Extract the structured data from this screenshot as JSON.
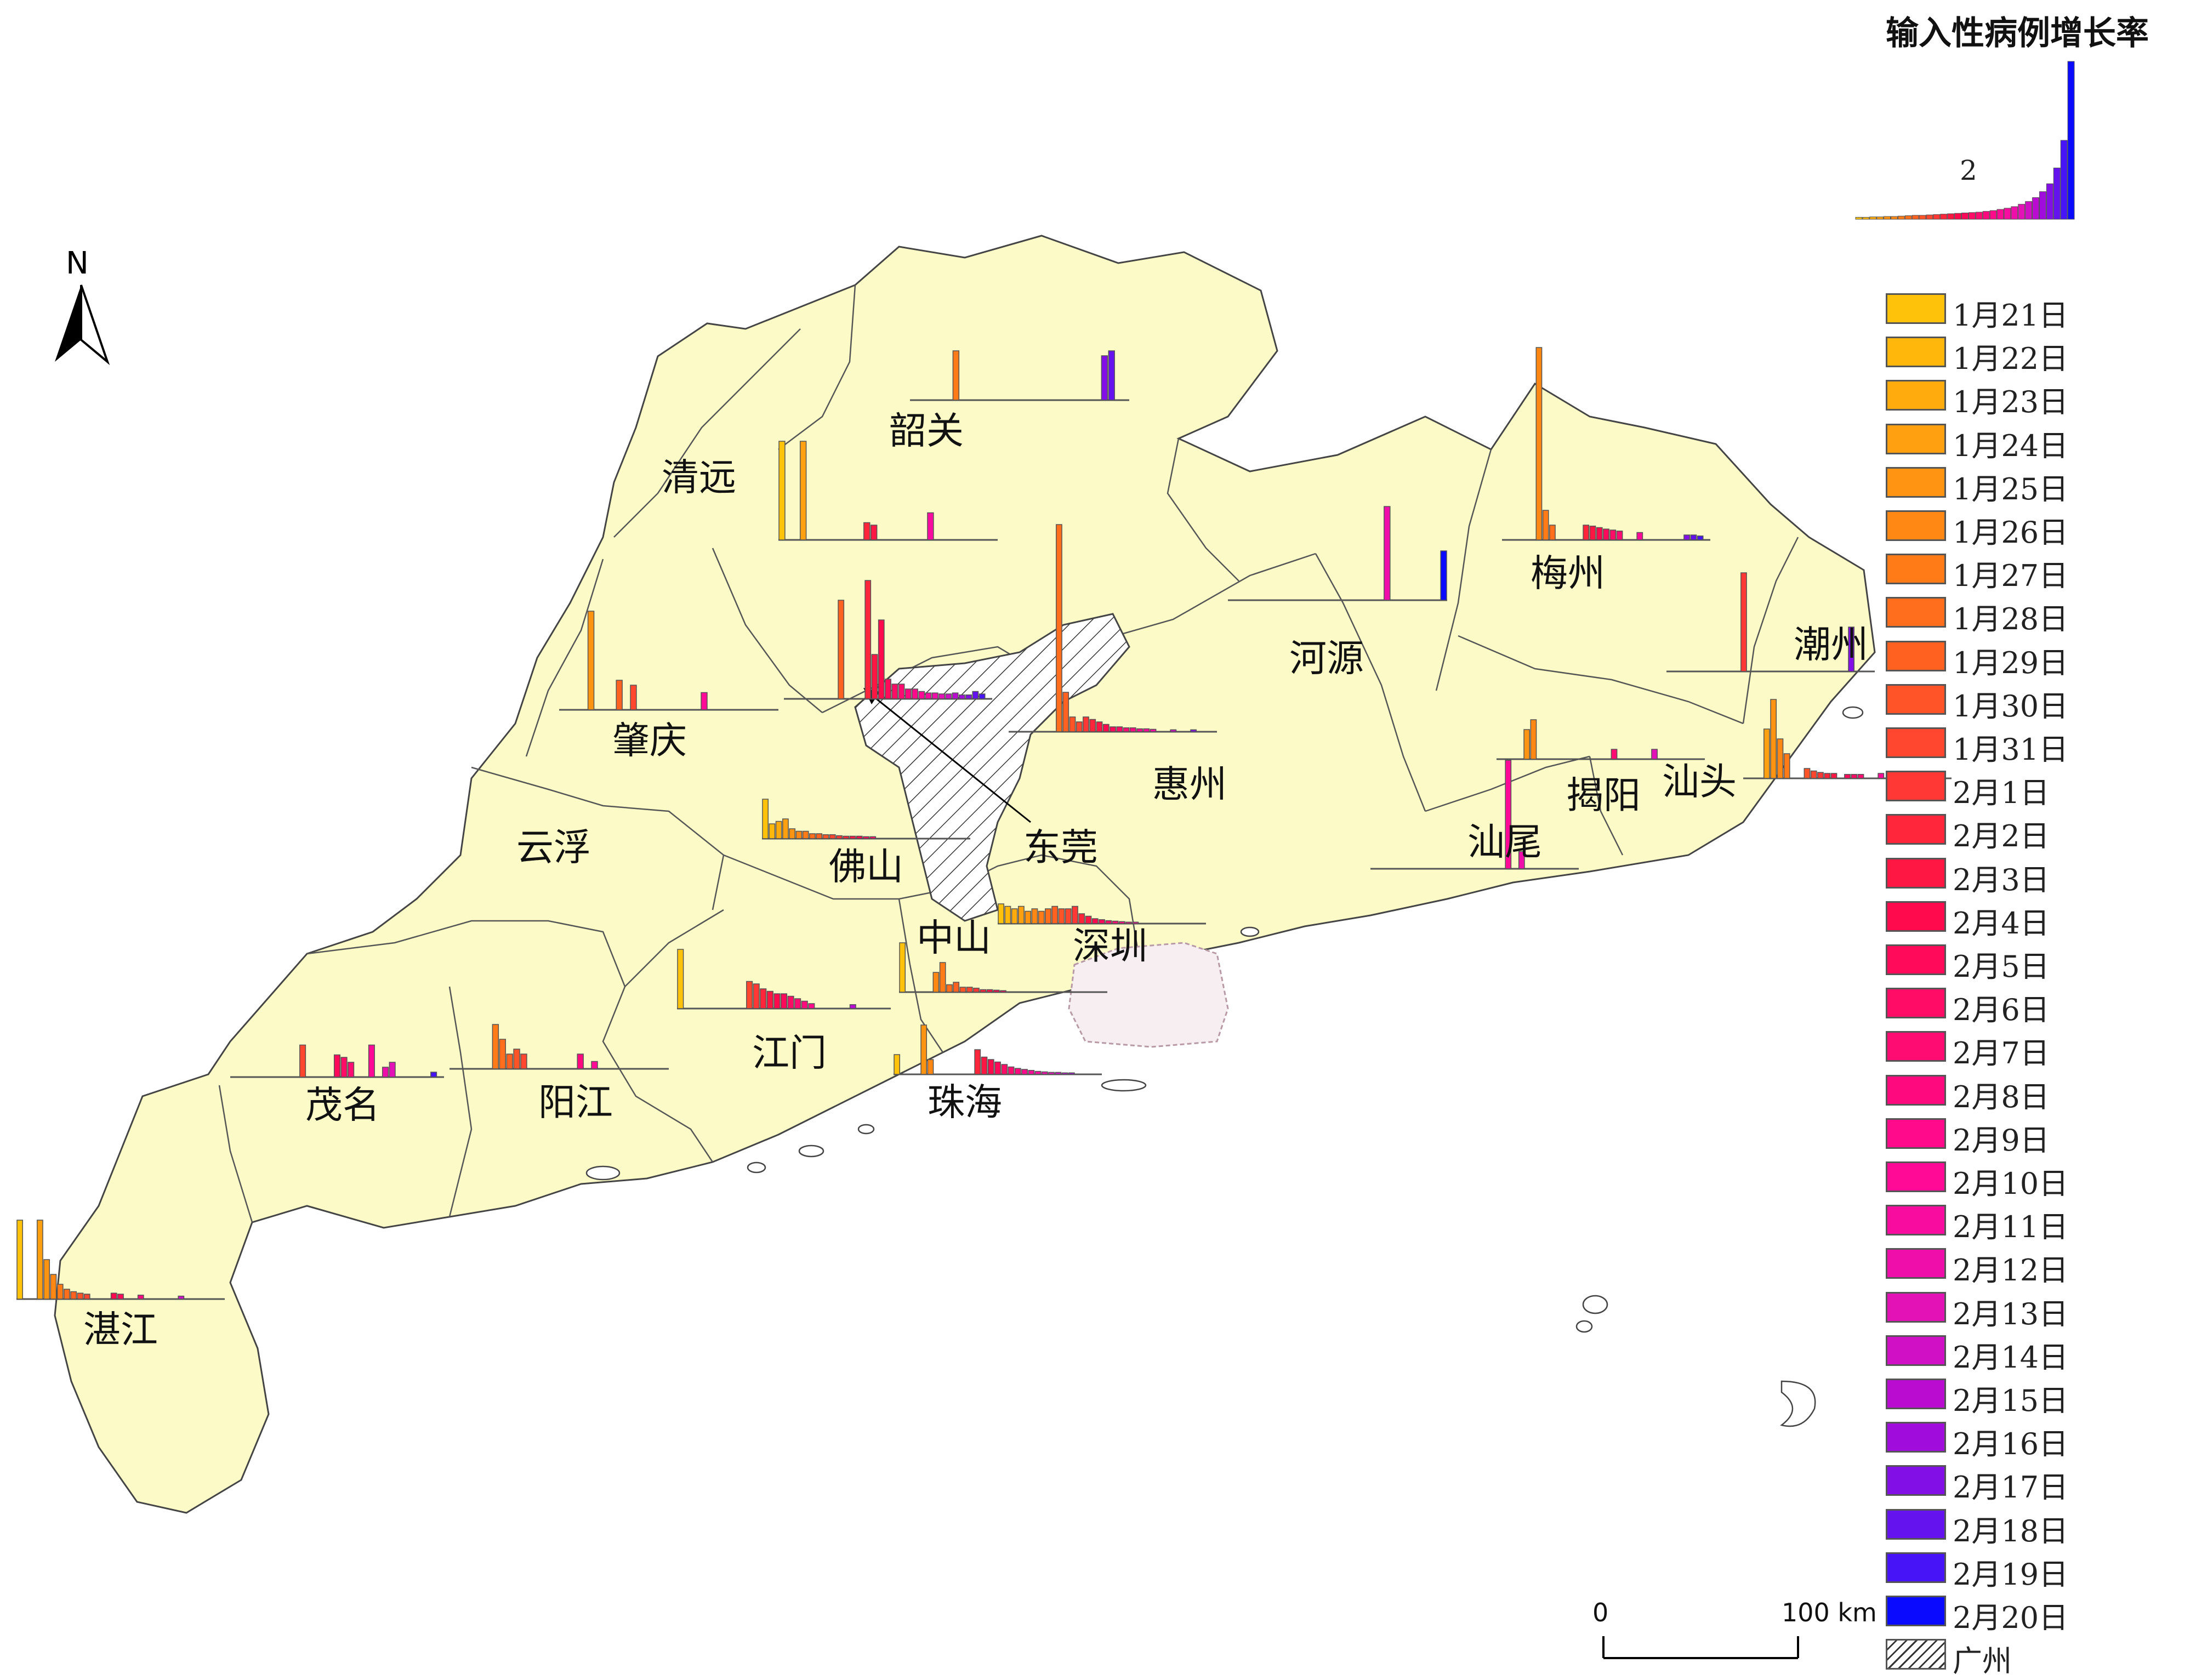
{
  "legend": {
    "title": "输入性病例增长率",
    "reference_value": "2",
    "dates": [
      "1月21日",
      "1月22日",
      "1月23日",
      "1月24日",
      "1月25日",
      "1月26日",
      "1月27日",
      "1月28日",
      "1月29日",
      "1月30日",
      "1月31日",
      "2月1日",
      "2月2日",
      "2月3日",
      "2月4日",
      "2月5日",
      "2月6日",
      "2月7日",
      "2月8日",
      "2月9日",
      "2月10日",
      "2月11日",
      "2月12日",
      "2月13日",
      "2月14日",
      "2月15日",
      "2月16日",
      "2月17日",
      "2月18日",
      "2月19日",
      "2月20日"
    ],
    "colors": [
      "#FFC20A",
      "#FFB70C",
      "#FFAB0E",
      "#FFA010",
      "#FF9412",
      "#FF8714",
      "#FF7B17",
      "#FF6E1C",
      "#FF6121",
      "#FF5428",
      "#FF472F",
      "#FF3836",
      "#FF263C",
      "#FF1744",
      "#FF0A4C",
      "#FF0A5A",
      "#FF0C66",
      "#FF0C72",
      "#FF0A7E",
      "#FF0A8A",
      "#FF0A96",
      "#F80CA0",
      "#F00EAA",
      "#E212B6",
      "#D010C4",
      "#BA0CD0",
      "#A00CDC",
      "#8210E6",
      "#6412EE",
      "#4614F6",
      "#0A0AFF"
    ],
    "hatch_label": "广州",
    "reference_values": [
      0.05,
      0.05,
      0.06,
      0.06,
      0.07,
      0.07,
      0.08,
      0.09,
      0.1,
      0.1,
      0.11,
      0.12,
      0.13,
      0.14,
      0.15,
      0.16,
      0.17,
      0.18,
      0.2,
      0.22,
      0.25,
      0.28,
      0.32,
      0.38,
      0.45,
      0.55,
      0.7,
      0.9,
      1.3,
      2.0,
      4.0
    ]
  },
  "north_arrow": {
    "label": "N"
  },
  "scale_bar": {
    "start_label": "0",
    "end_label": "100 km"
  },
  "cities": [
    {
      "name": "韶关",
      "bars": [
        0,
        0,
        0,
        0,
        0,
        0,
        1.0,
        0,
        0,
        0,
        0,
        0,
        0,
        0,
        0,
        0,
        0,
        0,
        0,
        0,
        0,
        0,
        0,
        0,
        0,
        0,
        0,
        0.9,
        1.0,
        0,
        0
      ]
    },
    {
      "name": "清远",
      "bars": [
        2.0,
        0,
        0,
        2.0,
        0,
        0,
        0,
        0,
        0,
        0,
        0,
        0,
        0.35,
        0.3,
        0,
        0,
        0,
        0,
        0,
        0,
        0,
        0.55,
        0,
        0,
        0,
        0,
        0,
        0,
        0,
        0,
        0
      ]
    },
    {
      "name": "河源",
      "bars": [
        0,
        0,
        0,
        0,
        0,
        0,
        0,
        0,
        0,
        0,
        0,
        0,
        0,
        0,
        0,
        0,
        0,
        0,
        0,
        0,
        0,
        0,
        1.9,
        0,
        0,
        0,
        0,
        0,
        0,
        0,
        1.0
      ]
    },
    {
      "name": "梅州",
      "bars": [
        0,
        0,
        0,
        0,
        0,
        3.9,
        0.6,
        0.3,
        0,
        0,
        0,
        0,
        0.3,
        0.28,
        0.25,
        0.22,
        0.2,
        0.18,
        0,
        0,
        0.15,
        0,
        0,
        0,
        0,
        0,
        0,
        0.1,
        0.1,
        0.08,
        0
      ]
    },
    {
      "name": "潮州",
      "bars": [
        0,
        0,
        0,
        0,
        0,
        0,
        0,
        0,
        0,
        0,
        0,
        2.0,
        0,
        0,
        0,
        0,
        0,
        0,
        0,
        0,
        0,
        0,
        0,
        0,
        0,
        0,
        0,
        0.9,
        0,
        0,
        0
      ]
    },
    {
      "name": "肇庆",
      "bars": [
        0,
        0,
        0,
        0,
        2.0,
        0,
        0,
        0,
        0.6,
        0,
        0.5,
        0,
        0,
        0,
        0,
        0,
        0,
        0,
        0,
        0,
        0.35,
        0,
        0,
        0,
        0,
        0,
        0,
        0,
        0,
        0,
        0
      ]
    },
    {
      "name": "广州",
      "bars": [
        0,
        0,
        0,
        0,
        0,
        0,
        0,
        0,
        2.0,
        0,
        0,
        0,
        2.4,
        0.9,
        1.6,
        0.4,
        0.3,
        0.3,
        0.2,
        0.2,
        0.15,
        0.12,
        0.12,
        0.1,
        0.1,
        0.12,
        0.08,
        0.08,
        0.15,
        0.1,
        0
      ]
    },
    {
      "name": "东莞",
      "bars": [
        0,
        0,
        0,
        0,
        0,
        0,
        0,
        4.2,
        0.8,
        0.3,
        0.2,
        0.3,
        0.25,
        0.2,
        0.15,
        0.1,
        0.1,
        0.08,
        0.08,
        0.06,
        0.06,
        0.05,
        0,
        0,
        0.04,
        0,
        0,
        0.04,
        0,
        0,
        0
      ]
    },
    {
      "name": "汕尾",
      "bars": [
        0,
        0,
        0,
        0,
        0,
        0,
        0,
        0,
        0,
        0,
        0,
        0,
        0,
        0,
        0,
        0,
        0,
        0,
        0,
        0,
        2.2,
        0,
        0.35,
        0,
        0,
        0,
        0,
        0,
        0,
        0,
        0
      ]
    },
    {
      "name": "揭阳",
      "bars": [
        0,
        0,
        0,
        0,
        0.6,
        0.8,
        0,
        0,
        0,
        0,
        0,
        0,
        0,
        0,
        0,
        0,
        0,
        0.2,
        0,
        0,
        0,
        0,
        0,
        0.2,
        0,
        0,
        0,
        0,
        0,
        0,
        0
      ]
    },
    {
      "name": "汕头",
      "bars": [
        0,
        0,
        0,
        1.0,
        1.6,
        0.8,
        0.5,
        0,
        0,
        0.2,
        0.15,
        0.12,
        0.1,
        0.1,
        0,
        0.08,
        0.08,
        0.08,
        0,
        0,
        0.1,
        0,
        0,
        0,
        0,
        0,
        0,
        0,
        0,
        0,
        0
      ]
    },
    {
      "name": "佛山",
      "bars": [
        0.8,
        0.3,
        0.35,
        0.4,
        0.2,
        0.15,
        0.15,
        0.1,
        0.1,
        0.08,
        0.08,
        0.06,
        0.05,
        0.05,
        0.05,
        0.04,
        0.04,
        0,
        0,
        0,
        0,
        0,
        0,
        0,
        0,
        0,
        0,
        0,
        0,
        0,
        0
      ]
    },
    {
      "name": "深圳",
      "bars": [
        0.4,
        0.35,
        0.3,
        0.35,
        0.25,
        0.3,
        0.25,
        0.3,
        0.35,
        0.3,
        0.3,
        0.35,
        0.2,
        0.15,
        0.1,
        0.08,
        0.06,
        0.05,
        0.04,
        0.03,
        0.03,
        0,
        0,
        0,
        0,
        0,
        0,
        0,
        0,
        0,
        0
      ]
    },
    {
      "name": "中山",
      "bars": [
        1.0,
        0,
        0,
        0,
        0,
        0.4,
        0.6,
        0.15,
        0.2,
        0.1,
        0.1,
        0.08,
        0.05,
        0.05,
        0.04,
        0.03,
        0,
        0,
        0,
        0,
        0,
        0,
        0,
        0,
        0,
        0,
        0,
        0,
        0,
        0,
        0
      ]
    },
    {
      "name": "江门",
      "bars": [
        1.2,
        0,
        0,
        0,
        0,
        0,
        0,
        0,
        0,
        0,
        0.55,
        0.5,
        0.4,
        0.35,
        0.3,
        0.3,
        0.25,
        0.2,
        0.15,
        0.1,
        0,
        0,
        0,
        0,
        0,
        0.08,
        0,
        0,
        0,
        0,
        0
      ]
    },
    {
      "name": "珠海",
      "bars": [
        0.4,
        0,
        0,
        0,
        1.0,
        0.3,
        0,
        0,
        0,
        0,
        0,
        0,
        0.5,
        0.35,
        0.3,
        0.25,
        0.2,
        0.15,
        0.12,
        0.1,
        0.08,
        0.06,
        0.05,
        0.04,
        0.04,
        0.03,
        0.03,
        0,
        0,
        0,
        0
      ]
    },
    {
      "name": "茂名",
      "bars": [
        0,
        0,
        0,
        0,
        0,
        0,
        0,
        0,
        0,
        0,
        0.65,
        0,
        0,
        0,
        0,
        0.45,
        0.4,
        0.3,
        0,
        0,
        0.65,
        0,
        0.2,
        0.3,
        0,
        0,
        0,
        0,
        0,
        0.1,
        0
      ]
    },
    {
      "name": "阳江",
      "bars": [
        0,
        0,
        0,
        0,
        0,
        0,
        0.9,
        0.6,
        0.3,
        0.4,
        0.3,
        0,
        0,
        0,
        0,
        0,
        0,
        0,
        0.3,
        0,
        0.15,
        0,
        0,
        0,
        0,
        0,
        0,
        0,
        0,
        0,
        0
      ]
    },
    {
      "name": "湛江",
      "bars": [
        1.6,
        0,
        0,
        1.6,
        0.8,
        0.5,
        0.3,
        0.2,
        0.15,
        0.12,
        0.1,
        0,
        0,
        0,
        0.12,
        0.1,
        0,
        0,
        0.08,
        0,
        0,
        0,
        0,
        0,
        0.06,
        0,
        0,
        0,
        0,
        0,
        0
      ]
    },
    {
      "name": "惠州",
      "bars": [],
      "label_only": true
    },
    {
      "name": "云浮",
      "bars": [],
      "label_only": true
    }
  ]
}
